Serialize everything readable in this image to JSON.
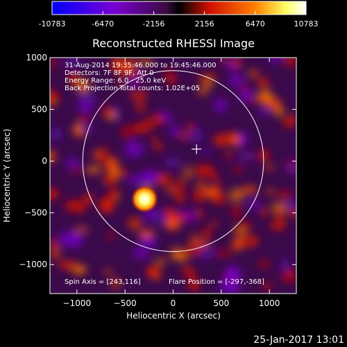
{
  "chart_data": {
    "type": "heatmap",
    "title": "Reconstructed RHESSI Image",
    "xlabel": "Heliocentric X (arcsec)",
    "ylabel": "Heliocentric Y (arcsec)",
    "xlim": [
      -1280,
      1280
    ],
    "ylim": [
      -1280,
      1000
    ],
    "xticks": [
      -1000,
      -500,
      0,
      500,
      1000
    ],
    "yticks": [
      1000,
      500,
      0,
      -500,
      -1000
    ],
    "colorbar": {
      "min": -10783,
      "max": 10783,
      "tick_values": [
        -10783,
        -6470,
        -2156,
        2156,
        6470,
        10783
      ],
      "tick_labels": [
        "-10783",
        "-6470",
        "-2156",
        "2156",
        "6470",
        "10783"
      ],
      "colors": [
        "#0000ff",
        "#7a00d0",
        "#3a0a40",
        "#000000",
        "#d01000",
        "#ff8000",
        "#ffff60",
        "#ffffff"
      ]
    },
    "annotations": {
      "time_range": "31-Aug-2014 19:35:46.000 to 19:45:46.000",
      "detectors": "Detectors: 7F 8F 9F, Att 0",
      "energy_range": "Energy Range: 6.0 - 25.0 keV",
      "method": "Back Projection",
      "total_counts": "Total counts: 1.02E+05",
      "spin_axis": "Spin Axis = [243,116]",
      "flare_position": "Flare Position = [-297,-368]"
    },
    "solar_limb_radius_arcsec": 940,
    "spin_axis": [
      243,
      116
    ],
    "flare_position": [
      -297,
      -368
    ],
    "footer": "25-Jan-2017 13:01"
  }
}
